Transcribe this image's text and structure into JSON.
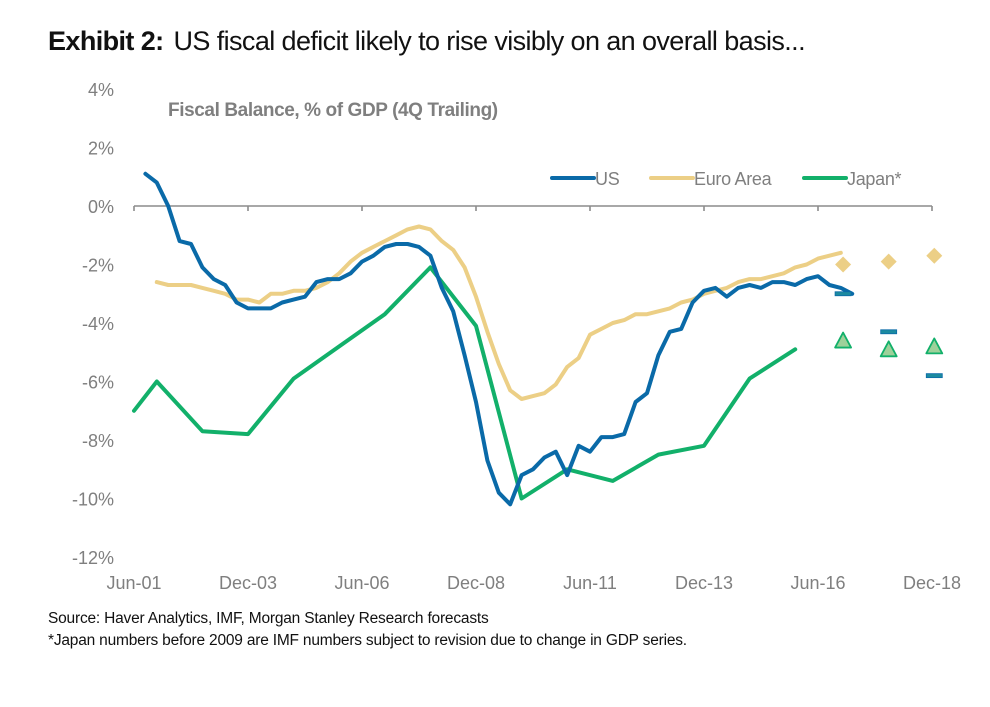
{
  "header": {
    "exhibit_label": "Exhibit 2:",
    "title": "US fiscal deficit likely to rise visibly on an overall basis..."
  },
  "footer": {
    "source": "Source: Haver Analytics, IMF, Morgan Stanley Research forecasts",
    "note": "*Japan numbers before 2009 are IMF numbers subject to revision due to change in GDP series."
  },
  "chart_data": {
    "type": "line",
    "title": "Fiscal Balance, % of GDP (4Q Trailing)",
    "xlabel": "",
    "ylabel": "",
    "ylim": [
      -12,
      4
    ],
    "yticks": [
      4,
      2,
      0,
      -2,
      -4,
      -6,
      -8,
      -10,
      -12
    ],
    "ytick_labels": [
      "4%",
      "2%",
      "0%",
      "-2%",
      "-4%",
      "-6%",
      "-8%",
      "-10%",
      "-12%"
    ],
    "xlim": [
      "Jun-01",
      "Dec-18"
    ],
    "xticks": [
      "Jun-01",
      "Dec-03",
      "Jun-06",
      "Dec-08",
      "Jun-11",
      "Dec-13",
      "Jun-16",
      "Dec-18"
    ],
    "x_unit": "quarters since Jun-01",
    "xtick_positions": [
      0,
      10,
      20,
      30,
      40,
      50,
      60,
      70
    ],
    "grid": false,
    "legend_position": "top-right",
    "colors": {
      "US": "#0a6aa8",
      "Euro Area": "#eccf86",
      "Japan": "#12b06a",
      "axis": "#8c8c8c",
      "text": "#7f7f7f"
    },
    "series": [
      {
        "name": "US",
        "legend": "US",
        "color": "#0a6aa8",
        "x": [
          1,
          2,
          3,
          4,
          5,
          6,
          7,
          8,
          9,
          10,
          11,
          12,
          13,
          14,
          15,
          16,
          17,
          18,
          19,
          20,
          21,
          22,
          23,
          24,
          25,
          26,
          27,
          28,
          29,
          30,
          31,
          32,
          33,
          34,
          35,
          36,
          37,
          38,
          39,
          40,
          41,
          42,
          43,
          44,
          45,
          46,
          47,
          48,
          49,
          50,
          51,
          52,
          53,
          54,
          55,
          56,
          57,
          58,
          59,
          60,
          61,
          62,
          63
        ],
        "values": [
          1.1,
          0.8,
          0.0,
          -1.2,
          -1.3,
          -2.1,
          -2.5,
          -2.7,
          -3.3,
          -3.5,
          -3.5,
          -3.5,
          -3.3,
          -3.2,
          -3.1,
          -2.6,
          -2.5,
          -2.5,
          -2.3,
          -1.9,
          -1.7,
          -1.4,
          -1.3,
          -1.3,
          -1.4,
          -1.7,
          -2.8,
          -3.6,
          -5.1,
          -6.7,
          -8.7,
          -9.8,
          -10.2,
          -9.2,
          -9.0,
          -8.6,
          -8.4,
          -9.2,
          -8.2,
          -8.4,
          -7.9,
          -7.9,
          -7.8,
          -6.7,
          -6.4,
          -5.1,
          -4.3,
          -4.2,
          -3.3,
          -2.9,
          -2.8,
          -3.1,
          -2.8,
          -2.7,
          -2.8,
          -2.6,
          -2.6,
          -2.7,
          -2.5,
          -2.4,
          -2.7,
          -2.8,
          -3.0
        ]
      },
      {
        "name": "Euro Area",
        "legend": "Euro Area",
        "color": "#eccf86",
        "x": [
          2,
          3,
          4,
          5,
          6,
          7,
          8,
          9,
          10,
          11,
          12,
          13,
          14,
          15,
          16,
          17,
          18,
          19,
          20,
          21,
          22,
          23,
          24,
          25,
          26,
          27,
          28,
          29,
          30,
          31,
          32,
          33,
          34,
          35,
          36,
          37,
          38,
          39,
          40,
          41,
          42,
          43,
          44,
          45,
          46,
          47,
          48,
          49,
          50,
          51,
          52,
          53,
          54,
          55,
          56,
          57,
          58,
          59,
          60,
          61,
          62
        ],
        "values": [
          -2.6,
          -2.7,
          -2.7,
          -2.7,
          -2.8,
          -2.9,
          -3.0,
          -3.2,
          -3.2,
          -3.3,
          -3.0,
          -3.0,
          -2.9,
          -2.9,
          -2.8,
          -2.6,
          -2.3,
          -1.9,
          -1.6,
          -1.4,
          -1.2,
          -1.0,
          -0.8,
          -0.7,
          -0.8,
          -1.2,
          -1.5,
          -2.1,
          -3.1,
          -4.3,
          -5.4,
          -6.3,
          -6.6,
          -6.5,
          -6.4,
          -6.1,
          -5.5,
          -5.2,
          -4.4,
          -4.2,
          -4.0,
          -3.9,
          -3.7,
          -3.7,
          -3.6,
          -3.5,
          -3.3,
          -3.2,
          -3.0,
          -2.9,
          -2.8,
          -2.6,
          -2.5,
          -2.5,
          -2.4,
          -2.3,
          -2.1,
          -2.0,
          -1.8,
          -1.7,
          -1.6
        ]
      },
      {
        "name": "Japan",
        "legend": "Japan*",
        "color": "#12b06a",
        "x": [
          0,
          2,
          6,
          10,
          14,
          18,
          22,
          26,
          30,
          34,
          38,
          42,
          46,
          50,
          54,
          58
        ],
        "values": [
          -7.0,
          -6.0,
          -7.7,
          -7.8,
          -5.9,
          -4.8,
          -3.7,
          -2.1,
          -4.1,
          -10.0,
          -9.0,
          -9.4,
          -8.5,
          -8.2,
          -5.9,
          -4.9
        ]
      }
    ],
    "forecasts": [
      {
        "name": "US forecast",
        "marker": "dash",
        "color": "#0a6aa8",
        "x": [
          62.2,
          66.2,
          70.2
        ],
        "values": [
          -3.0,
          -4.3,
          -5.8
        ]
      },
      {
        "name": "Euro Area forecast",
        "marker": "diamond",
        "color": "#eccf86",
        "x": [
          62.2,
          66.2,
          70.2
        ],
        "values": [
          -2.0,
          -1.9,
          -1.7
        ]
      },
      {
        "name": "Japan forecast",
        "marker": "triangle",
        "color": "#12b06a",
        "fill": "#9ed19a",
        "x": [
          62.2,
          66.2,
          70.2
        ],
        "values": [
          -4.6,
          -4.9,
          -4.8
        ]
      }
    ]
  }
}
